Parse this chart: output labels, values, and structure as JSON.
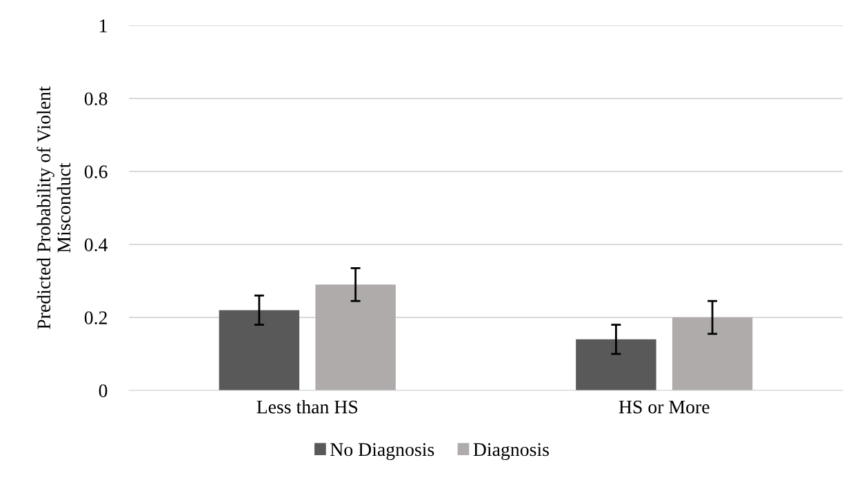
{
  "chart_data": {
    "type": "bar",
    "ylabel": "Predicted Probability of Violent\nMisconduct",
    "categories": [
      "Less than HS",
      "HS or More"
    ],
    "series": [
      {
        "name": "No Diagnosis",
        "color": "#595959",
        "values": [
          0.22,
          0.14
        ],
        "errors": [
          [
            0.18,
            0.26
          ],
          [
            0.1,
            0.18
          ]
        ]
      },
      {
        "name": "Diagnosis",
        "color": "#afabab",
        "values": [
          0.29,
          0.2
        ],
        "errors": [
          [
            0.245,
            0.335
          ],
          [
            0.155,
            0.245
          ]
        ]
      }
    ],
    "ylim": [
      0,
      1
    ],
    "yticks": [
      0,
      0.2,
      0.4,
      0.6,
      0.8,
      1
    ],
    "grid": "y",
    "legend": "bottom"
  }
}
